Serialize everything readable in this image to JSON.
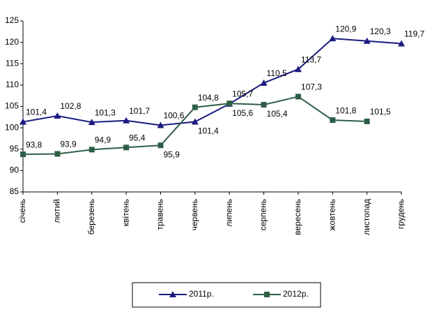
{
  "chart_data": {
    "type": "line",
    "categories": [
      "січень",
      "лютий",
      "березень",
      "квітень",
      "травень",
      "червень",
      "липень",
      "серпень",
      "вересень",
      "жовтень",
      "листопад",
      "грудень"
    ],
    "series": [
      {
        "name": "2011р.",
        "color": "#1a1a80",
        "marker": "triangle",
        "values": [
          101.4,
          102.8,
          101.3,
          101.7,
          100.6,
          101.4,
          105.6,
          110.5,
          113.7,
          120.9,
          120.3,
          119.7
        ],
        "value_labels": [
          "101,4",
          "102,8",
          "101,3",
          "101,7",
          "100,6",
          "101,4",
          "105,6",
          "110,5",
          "113,7",
          "120,9",
          "120,3",
          "119,7"
        ]
      },
      {
        "name": "2012р.",
        "color": "#2e5e46",
        "marker": "square",
        "values": [
          93.8,
          93.9,
          94.9,
          95.4,
          95.9,
          104.8,
          105.7,
          105.4,
          107.3,
          101.8,
          101.5,
          null
        ],
        "value_labels": [
          "93,8",
          "93,9",
          "94,9",
          "95,4",
          "95,9",
          "104,8",
          "105,7",
          "105,4",
          "107,3",
          "101,8",
          "101,5",
          null
        ]
      }
    ],
    "ylim": [
      85,
      125
    ],
    "yticks": [
      85,
      90,
      95,
      100,
      105,
      110,
      115,
      120,
      125
    ],
    "grid": false,
    "legend": "bottom"
  }
}
